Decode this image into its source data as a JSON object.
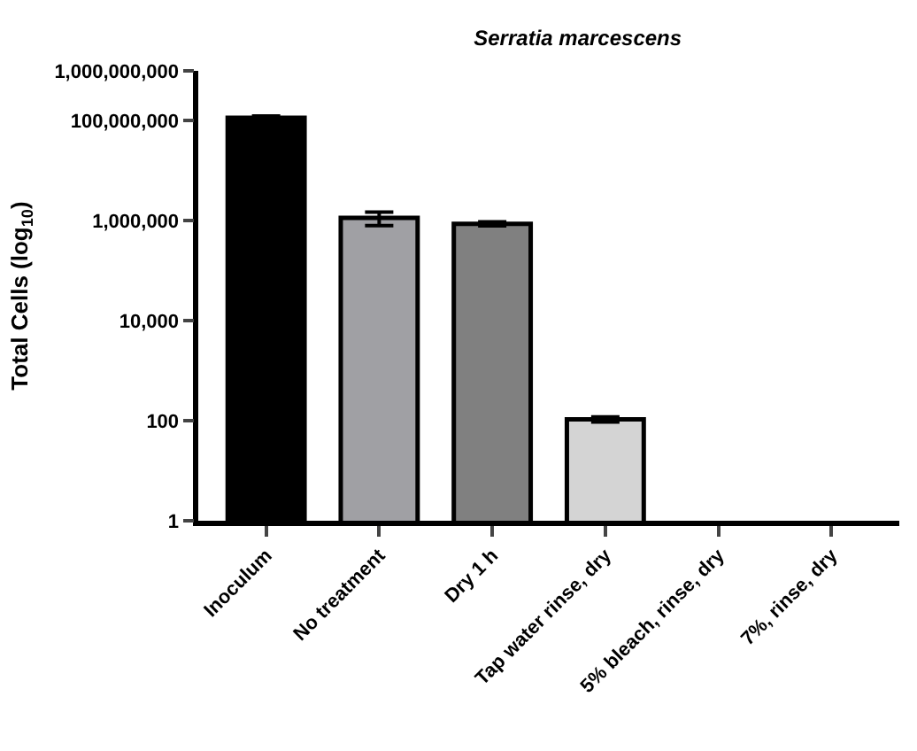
{
  "chart_data": {
    "type": "bar",
    "title": "Serratia marcescens",
    "ylabel": "Total Cells (log$_{10}$)",
    "categories": [
      "Inoculum",
      "No treatment",
      "Dry 1 h",
      "Tap water rinse, dry",
      "5% bleach, rinse, dry",
      "7%, rinse, dry"
    ],
    "values": [
      115000000,
      1150000,
      870000,
      107,
      null,
      null
    ],
    "errors": [
      10000000,
      350000,
      80000,
      13,
      null,
      null
    ],
    "colors": [
      "#000000",
      "#a0a0a4",
      "#808080",
      "#d4d4d4",
      "#d4d4d4",
      "#d4d4d4"
    ],
    "log": true,
    "ylim": [
      1,
      1000000000
    ],
    "yticks": [
      1,
      "100",
      {
        "value": 10000,
        "label": "10,000"
      },
      {
        "value": 1000000,
        "label": "1,000,000"
      },
      {
        "value": 100000000,
        "label": "100,000,000"
      },
      {
        "value": 1000000000,
        "label": "1,000,000,000"
      }
    ]
  }
}
